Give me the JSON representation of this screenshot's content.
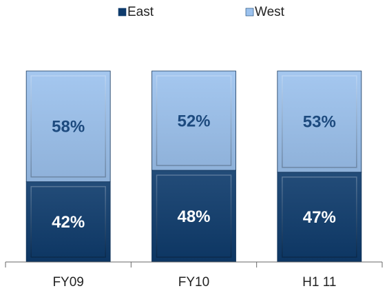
{
  "chart_data": {
    "type": "stacked_bar",
    "categories": [
      "FY09",
      "FY10",
      "H1 11"
    ],
    "series": [
      {
        "name": "East",
        "color": "#0e3b6c",
        "values": [
          42,
          48,
          47
        ],
        "value_labels": [
          "42%",
          "48%",
          "47%"
        ]
      },
      {
        "name": "West",
        "color": "#9cc2ee",
        "values": [
          58,
          52,
          53
        ],
        "value_labels": [
          "58%",
          "52%",
          "53%"
        ]
      }
    ],
    "ylim": [
      0,
      100
    ],
    "legend": "top"
  }
}
